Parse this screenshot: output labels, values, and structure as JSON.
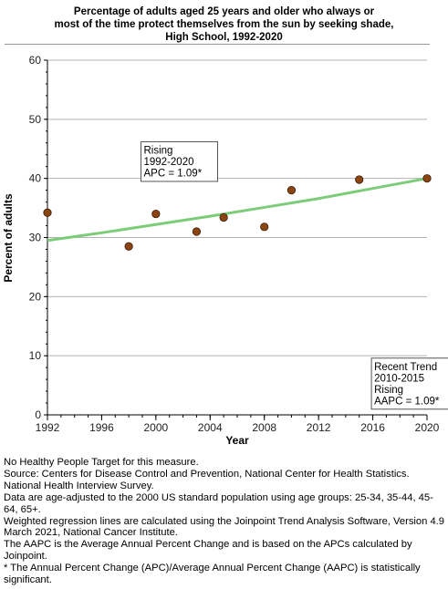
{
  "title_lines": [
    "Percentage of adults aged 25 years and older who always or",
    "most of the time protect themselves from the sun by seeking shade,",
    "High School,  1992-2020"
  ],
  "chart_data": {
    "type": "scatter",
    "title": "Percentage of adults aged 25 years and older who always or most of the time protect themselves from the sun by seeking shade, High School,  1992-2020",
    "xlabel": "Year",
    "ylabel": "Percent of adults",
    "xlim": [
      1992,
      2020
    ],
    "ylim": [
      0,
      60
    ],
    "x_ticks": [
      "1992",
      "1996",
      "2000",
      "2004",
      "2008",
      "2012",
      "2016",
      "2020"
    ],
    "y_ticks": [
      "0",
      "10",
      "20",
      "30",
      "40",
      "50",
      "60"
    ],
    "grid": "horizontal",
    "series": [
      {
        "type": "scatter",
        "color": "#8B4513",
        "points": [
          {
            "x": 1992,
            "y": 34.2
          },
          {
            "x": 1998,
            "y": 28.5
          },
          {
            "x": 2000,
            "y": 34.0
          },
          {
            "x": 2003,
            "y": 31.0
          },
          {
            "x": 2005,
            "y": 33.4
          },
          {
            "x": 2008,
            "y": 31.8
          },
          {
            "x": 2010,
            "y": 38.0
          },
          {
            "x": 2015,
            "y": 39.8
          },
          {
            "x": 2020,
            "y": 40.0
          }
        ]
      },
      {
        "type": "line",
        "color": "#7dcc7a",
        "x": [
          1992,
          1996,
          2000,
          2004,
          2008,
          2012,
          2016,
          2020
        ],
        "values": [
          29.5,
          30.8,
          32.2,
          33.6,
          35.1,
          36.6,
          38.3,
          40.0
        ]
      }
    ],
    "annotations": [
      {
        "lines": [
          "Rising",
          "1992-2020",
          "APC =  1.09*"
        ]
      },
      {
        "lines": [
          "Recent Trend",
          "2010-2015",
          "Rising",
          "AAPC =  1.09*"
        ]
      }
    ]
  },
  "notes": [
    "No Healthy People Target for this measure.",
    "Source: Centers for Disease Control and Prevention, National Center for Health Statistics. National Health Interview Survey.",
    "Data are age-adjusted to the 2000 US standard population using age groups: 25-34, 35-44, 45-64, 65+.",
    "Weighted regression lines are calculated using the Joinpoint Trend Analysis Software, Version 4.9 March 2021, National Cancer Institute.",
    "The AAPC is the Average Annual Percent Change and is based on the APCs calculated by Joinpoint.",
    "* The Annual Percent Change (APC)/Average Annual Percent Change (AAPC) is statistically significant."
  ]
}
